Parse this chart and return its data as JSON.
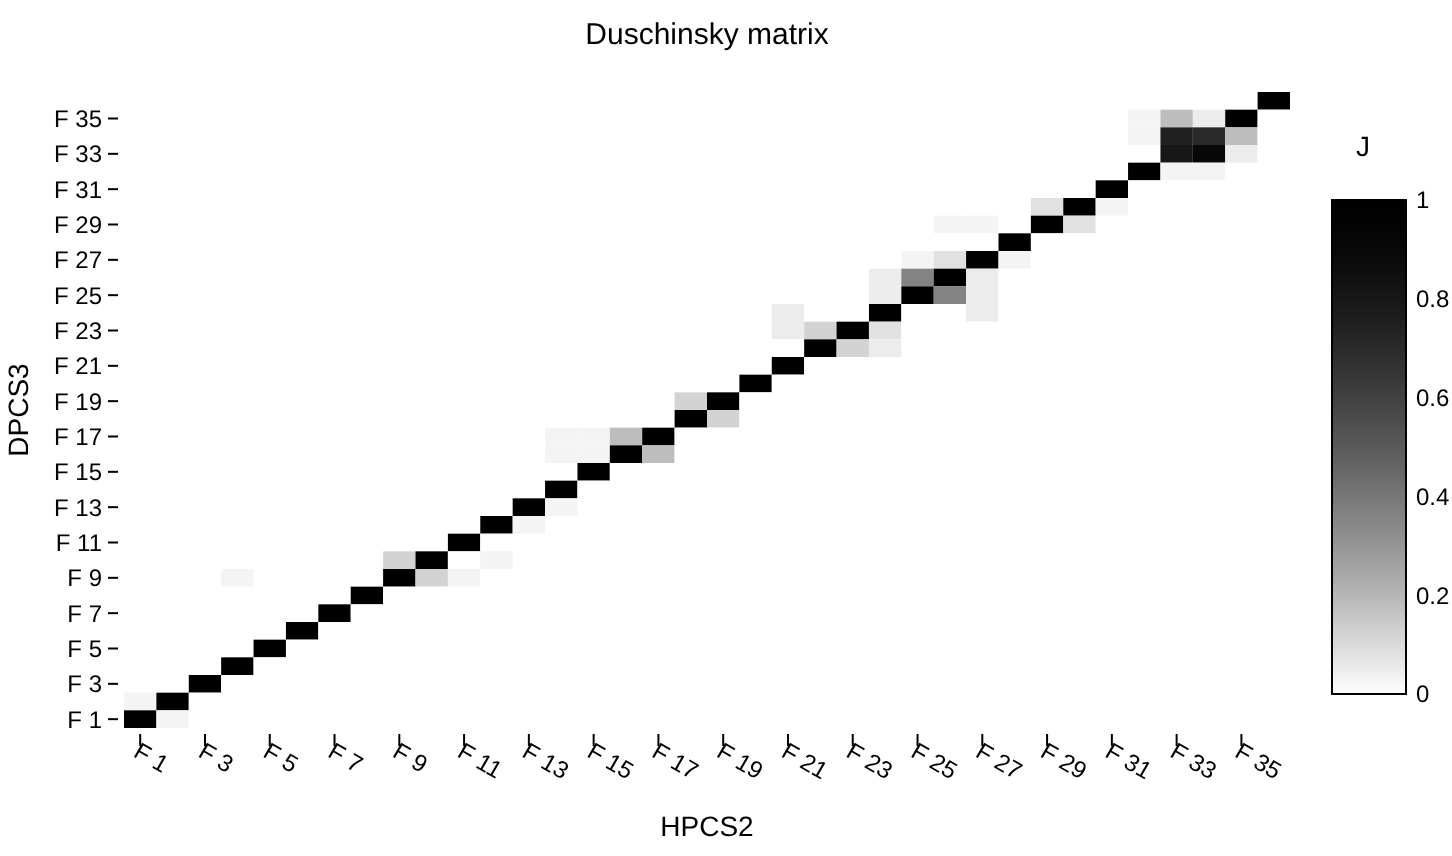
{
  "chart_data": {
    "type": "heatmap",
    "title": "Duschinsky matrix",
    "xlabel": "HPCS2",
    "ylabel": "DPCS3",
    "clabel": "J",
    "categories": [
      "F 1",
      null,
      "F 3",
      null,
      "F 5",
      null,
      "F 7",
      null,
      "F 9",
      null,
      "F 11",
      null,
      "F 13",
      null,
      "F 15",
      null,
      "F 17",
      null,
      "F 19",
      null,
      "F 21",
      null,
      "F 23",
      null,
      "F 25",
      null,
      "F 27",
      null,
      "F 29",
      null,
      "F 31",
      null,
      "F 33",
      null,
      "F 35",
      null
    ],
    "y_categories": [
      null,
      "F 35",
      null,
      "F 33",
      null,
      "F 31",
      null,
      "F 29",
      null,
      "F 27",
      null,
      "F 25",
      null,
      "F 23",
      null,
      "F 21",
      null,
      "F 19",
      null,
      "F 17",
      null,
      "F 15",
      null,
      "F 13",
      null,
      "F 11",
      null,
      "F 9",
      null,
      "F 7",
      null,
      "F 5",
      null,
      "F 3",
      null,
      "F 1"
    ],
    "cells": [
      [
        0,
        0,
        0,
        0,
        0,
        0,
        0,
        0,
        0,
        0,
        0,
        0,
        0,
        0,
        0,
        0,
        0,
        0,
        0,
        0,
        0,
        0,
        0,
        0,
        0,
        0,
        0,
        0,
        0,
        0,
        0,
        0,
        0,
        0,
        0,
        1
      ],
      [
        0,
        0,
        0,
        0,
        0,
        0,
        0,
        0,
        0,
        0,
        0,
        0,
        0,
        0,
        0,
        0,
        0,
        0,
        0,
        0,
        0,
        0,
        0,
        0,
        0,
        0,
        0,
        0,
        0,
        0,
        0,
        0.03,
        0.18,
        0.05,
        1,
        0
      ],
      [
        0,
        0,
        0,
        0,
        0,
        0,
        0,
        0,
        0,
        0,
        0,
        0,
        0,
        0,
        0,
        0,
        0,
        0,
        0,
        0,
        0,
        0,
        0,
        0,
        0,
        0,
        0,
        0,
        0,
        0,
        0,
        0.03,
        0.75,
        0.7,
        0.18,
        0
      ],
      [
        0,
        0,
        0,
        0,
        0,
        0,
        0,
        0,
        0,
        0,
        0,
        0,
        0,
        0,
        0,
        0,
        0,
        0,
        0,
        0,
        0,
        0,
        0,
        0,
        0,
        0,
        0,
        0,
        0,
        0,
        0,
        0,
        0.8,
        0.9,
        0.05,
        0
      ],
      [
        0,
        0,
        0,
        0,
        0,
        0,
        0,
        0,
        0,
        0,
        0,
        0,
        0,
        0,
        0,
        0,
        0,
        0,
        0,
        0,
        0,
        0,
        0,
        0,
        0,
        0,
        0,
        0,
        0,
        0,
        0,
        1,
        0.03,
        0.03,
        0,
        0
      ],
      [
        0,
        0,
        0,
        0,
        0,
        0,
        0,
        0,
        0,
        0,
        0,
        0,
        0,
        0,
        0,
        0,
        0,
        0,
        0,
        0,
        0,
        0,
        0,
        0,
        0,
        0,
        0,
        0,
        0,
        0,
        1,
        0,
        0,
        0,
        0,
        0
      ],
      [
        0,
        0,
        0,
        0,
        0,
        0,
        0,
        0,
        0,
        0,
        0,
        0,
        0,
        0,
        0,
        0,
        0,
        0,
        0,
        0,
        0,
        0,
        0,
        0,
        0,
        0,
        0,
        0,
        0.08,
        1,
        0.03,
        0,
        0,
        0,
        0,
        0
      ],
      [
        0,
        0,
        0,
        0,
        0,
        0,
        0,
        0,
        0,
        0,
        0,
        0,
        0,
        0,
        0,
        0,
        0,
        0,
        0,
        0,
        0,
        0,
        0,
        0,
        0,
        0.03,
        0.03,
        0,
        1,
        0.08,
        0,
        0,
        0,
        0,
        0,
        0
      ],
      [
        0,
        0,
        0,
        0,
        0,
        0,
        0,
        0,
        0,
        0,
        0,
        0,
        0,
        0,
        0,
        0,
        0,
        0,
        0,
        0,
        0,
        0,
        0,
        0,
        0,
        0,
        0,
        1,
        0,
        0,
        0,
        0,
        0,
        0,
        0,
        0
      ],
      [
        0,
        0,
        0,
        0,
        0,
        0,
        0,
        0,
        0,
        0,
        0,
        0,
        0,
        0,
        0,
        0,
        0,
        0,
        0,
        0,
        0,
        0,
        0,
        0,
        0.03,
        0.08,
        1,
        0.03,
        0,
        0,
        0,
        0,
        0,
        0,
        0,
        0
      ],
      [
        0,
        0,
        0,
        0,
        0,
        0,
        0,
        0,
        0,
        0,
        0,
        0,
        0,
        0,
        0,
        0,
        0,
        0,
        0,
        0,
        0,
        0,
        0,
        0.05,
        0.36,
        1,
        0.05,
        0,
        0,
        0,
        0,
        0,
        0,
        0,
        0,
        0
      ],
      [
        0,
        0,
        0,
        0,
        0,
        0,
        0,
        0,
        0,
        0,
        0,
        0,
        0,
        0,
        0,
        0,
        0,
        0,
        0,
        0,
        0,
        0,
        0,
        0.05,
        1,
        0.36,
        0.05,
        0,
        0,
        0,
        0,
        0,
        0,
        0,
        0,
        0
      ],
      [
        0,
        0,
        0,
        0,
        0,
        0,
        0,
        0,
        0,
        0,
        0,
        0,
        0,
        0,
        0,
        0,
        0,
        0,
        0,
        0,
        0.05,
        0,
        0,
        1,
        0,
        0,
        0.05,
        0,
        0,
        0,
        0,
        0,
        0,
        0,
        0,
        0
      ],
      [
        0,
        0,
        0,
        0,
        0,
        0,
        0,
        0,
        0,
        0,
        0,
        0,
        0,
        0,
        0,
        0,
        0,
        0,
        0,
        0,
        0.05,
        0.12,
        1,
        0.08,
        0,
        0,
        0,
        0,
        0,
        0,
        0,
        0,
        0,
        0,
        0,
        0
      ],
      [
        0,
        0,
        0,
        0,
        0,
        0,
        0,
        0,
        0,
        0,
        0,
        0,
        0,
        0,
        0,
        0,
        0,
        0,
        0,
        0,
        0,
        1,
        0.12,
        0.05,
        0,
        0,
        0,
        0,
        0,
        0,
        0,
        0,
        0,
        0,
        0,
        0
      ],
      [
        0,
        0,
        0,
        0,
        0,
        0,
        0,
        0,
        0,
        0,
        0,
        0,
        0,
        0,
        0,
        0,
        0,
        0,
        0,
        0,
        1,
        0,
        0,
        0,
        0,
        0,
        0,
        0,
        0,
        0,
        0,
        0,
        0,
        0,
        0,
        0
      ],
      [
        0,
        0,
        0,
        0,
        0,
        0,
        0,
        0,
        0,
        0,
        0,
        0,
        0,
        0,
        0,
        0,
        0,
        0,
        0,
        1,
        0,
        0,
        0,
        0,
        0,
        0,
        0,
        0,
        0,
        0,
        0,
        0,
        0,
        0,
        0,
        0
      ],
      [
        0,
        0,
        0,
        0,
        0,
        0,
        0,
        0,
        0,
        0,
        0,
        0,
        0,
        0,
        0,
        0,
        0,
        0.12,
        1,
        0,
        0,
        0,
        0,
        0,
        0,
        0,
        0,
        0,
        0,
        0,
        0,
        0,
        0,
        0,
        0,
        0
      ],
      [
        0,
        0,
        0,
        0,
        0,
        0,
        0,
        0,
        0,
        0,
        0,
        0,
        0,
        0,
        0,
        0,
        0,
        1,
        0.12,
        0,
        0,
        0,
        0,
        0,
        0,
        0,
        0,
        0,
        0,
        0,
        0,
        0,
        0,
        0,
        0,
        0
      ],
      [
        0,
        0,
        0,
        0,
        0,
        0,
        0,
        0,
        0,
        0,
        0,
        0,
        0,
        0.03,
        0.03,
        0.18,
        1,
        0,
        0,
        0,
        0,
        0,
        0,
        0,
        0,
        0,
        0,
        0,
        0,
        0,
        0,
        0,
        0,
        0,
        0,
        0
      ],
      [
        0,
        0,
        0,
        0,
        0,
        0,
        0,
        0,
        0,
        0,
        0,
        0,
        0,
        0.03,
        0.03,
        1,
        0.18,
        0,
        0,
        0,
        0,
        0,
        0,
        0,
        0,
        0,
        0,
        0,
        0,
        0,
        0,
        0,
        0,
        0,
        0,
        0
      ],
      [
        0,
        0,
        0,
        0,
        0,
        0,
        0,
        0,
        0,
        0,
        0,
        0,
        0,
        0,
        1,
        0,
        0,
        0,
        0,
        0,
        0,
        0,
        0,
        0,
        0,
        0,
        0,
        0,
        0,
        0,
        0,
        0,
        0,
        0,
        0,
        0
      ],
      [
        0,
        0,
        0,
        0,
        0,
        0,
        0,
        0,
        0,
        0,
        0,
        0,
        0,
        1,
        0,
        0,
        0,
        0,
        0,
        0,
        0,
        0,
        0,
        0,
        0,
        0,
        0,
        0,
        0,
        0,
        0,
        0,
        0,
        0,
        0,
        0
      ],
      [
        0,
        0,
        0,
        0,
        0,
        0,
        0,
        0,
        0,
        0,
        0,
        0,
        1,
        0.03,
        0,
        0,
        0,
        0,
        0,
        0,
        0,
        0,
        0,
        0,
        0,
        0,
        0,
        0,
        0,
        0,
        0,
        0,
        0,
        0,
        0,
        0
      ],
      [
        0,
        0,
        0,
        0,
        0,
        0,
        0,
        0,
        0,
        0,
        0,
        1,
        0.03,
        0,
        0,
        0,
        0,
        0,
        0,
        0,
        0,
        0,
        0,
        0,
        0,
        0,
        0,
        0,
        0,
        0,
        0,
        0,
        0,
        0,
        0,
        0
      ],
      [
        0,
        0,
        0,
        0,
        0,
        0,
        0,
        0,
        0,
        0,
        1,
        0,
        0,
        0,
        0,
        0,
        0,
        0,
        0,
        0,
        0,
        0,
        0,
        0,
        0,
        0,
        0,
        0,
        0,
        0,
        0,
        0,
        0,
        0,
        0,
        0
      ],
      [
        0,
        0,
        0,
        0,
        0,
        0,
        0,
        0,
        0.12,
        1,
        0,
        0.03,
        0,
        0,
        0,
        0,
        0,
        0,
        0,
        0,
        0,
        0,
        0,
        0,
        0,
        0,
        0,
        0,
        0,
        0,
        0,
        0,
        0,
        0,
        0,
        0
      ],
      [
        0,
        0,
        0,
        0.03,
        0,
        0,
        0,
        0,
        1,
        0.12,
        0.03,
        0,
        0,
        0,
        0,
        0,
        0,
        0,
        0,
        0,
        0,
        0,
        0,
        0,
        0,
        0,
        0,
        0,
        0,
        0,
        0,
        0,
        0,
        0,
        0,
        0
      ],
      [
        0,
        0,
        0,
        0,
        0,
        0,
        0,
        1,
        0,
        0,
        0,
        0,
        0,
        0,
        0,
        0,
        0,
        0,
        0,
        0,
        0,
        0,
        0,
        0,
        0,
        0,
        0,
        0,
        0,
        0,
        0,
        0,
        0,
        0,
        0,
        0
      ],
      [
        0,
        0,
        0,
        0,
        0,
        0,
        1,
        0,
        0,
        0,
        0,
        0,
        0,
        0,
        0,
        0,
        0,
        0,
        0,
        0,
        0,
        0,
        0,
        0,
        0,
        0,
        0,
        0,
        0,
        0,
        0,
        0,
        0,
        0,
        0,
        0
      ],
      [
        0,
        0,
        0,
        0,
        0,
        1,
        0,
        0,
        0,
        0,
        0,
        0,
        0,
        0,
        0,
        0,
        0,
        0,
        0,
        0,
        0,
        0,
        0,
        0,
        0,
        0,
        0,
        0,
        0,
        0,
        0,
        0,
        0,
        0,
        0,
        0
      ],
      [
        0,
        0,
        0,
        0,
        1,
        0,
        0,
        0,
        0,
        0,
        0,
        0,
        0,
        0,
        0,
        0,
        0,
        0,
        0,
        0,
        0,
        0,
        0,
        0,
        0,
        0,
        0,
        0,
        0,
        0,
        0,
        0,
        0,
        0,
        0,
        0
      ],
      [
        0,
        0,
        0,
        1,
        0,
        0,
        0,
        0,
        0,
        0,
        0,
        0,
        0,
        0,
        0,
        0,
        0,
        0,
        0,
        0,
        0,
        0,
        0,
        0,
        0,
        0,
        0,
        0,
        0,
        0,
        0,
        0,
        0,
        0,
        0,
        0
      ],
      [
        0,
        0,
        1,
        0,
        0,
        0,
        0,
        0,
        0,
        0,
        0,
        0,
        0,
        0,
        0,
        0,
        0,
        0,
        0,
        0,
        0,
        0,
        0,
        0,
        0,
        0,
        0,
        0,
        0,
        0,
        0,
        0,
        0,
        0,
        0,
        0
      ],
      [
        0.03,
        1,
        0,
        0,
        0,
        0,
        0,
        0,
        0,
        0,
        0,
        0,
        0,
        0,
        0,
        0,
        0,
        0,
        0,
        0,
        0,
        0,
        0,
        0,
        0,
        0,
        0,
        0,
        0,
        0,
        0,
        0,
        0,
        0,
        0,
        0
      ],
      [
        1,
        0.03,
        0,
        0,
        0,
        0,
        0,
        0,
        0,
        0,
        0,
        0,
        0,
        0,
        0,
        0,
        0,
        0,
        0,
        0,
        0,
        0,
        0,
        0,
        0,
        0,
        0,
        0,
        0,
        0,
        0,
        0,
        0,
        0,
        0,
        0
      ]
    ],
    "clim": [
      0,
      1
    ],
    "cticks": [
      0,
      0.2,
      0.4,
      0.6,
      0.8,
      1
    ]
  }
}
